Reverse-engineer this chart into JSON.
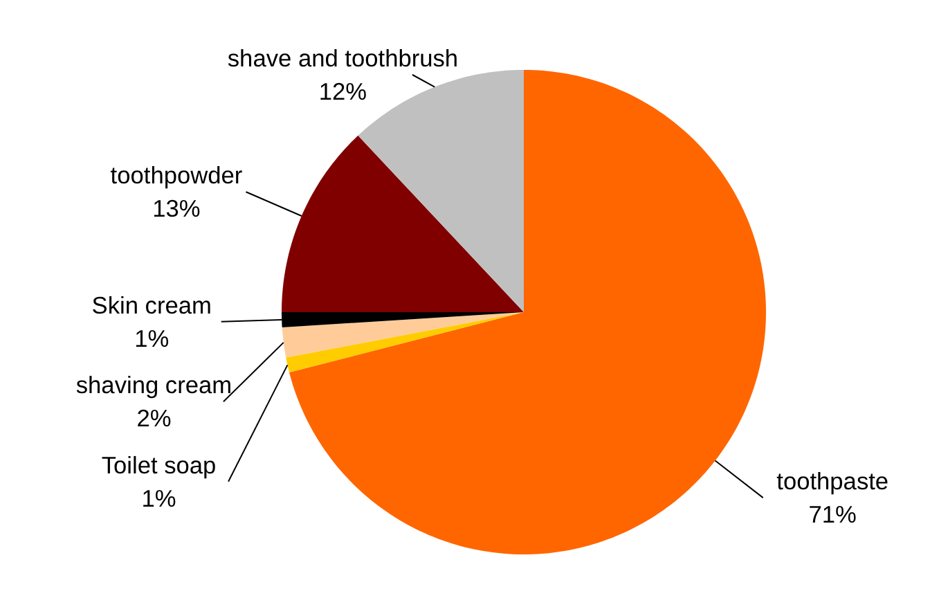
{
  "chart_data": {
    "type": "pie",
    "categories": [
      "toothpaste",
      "Toilet soap",
      "shaving cream",
      "Skin cream",
      "toothpowder",
      "shave and toothbrush"
    ],
    "values": [
      71,
      1,
      2,
      1,
      13,
      12
    ],
    "colors": [
      "#ff6600",
      "#ffcc00",
      "#ffcc99",
      "#000000",
      "#800000",
      "#c0c0c0"
    ],
    "value_labels": [
      "71%",
      "1%",
      "2%",
      "1%",
      "13%",
      "12%"
    ]
  }
}
